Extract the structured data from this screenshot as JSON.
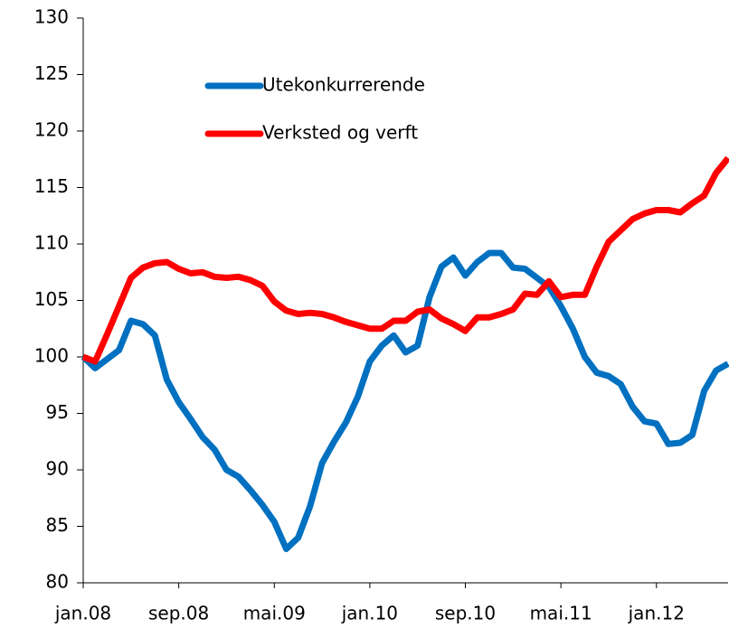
{
  "chart_data": {
    "type": "line",
    "categories": [
      "jan.08",
      null,
      null,
      null,
      null,
      null,
      null,
      null,
      "sep.08",
      null,
      null,
      null,
      null,
      null,
      null,
      null,
      "mai.09",
      null,
      null,
      null,
      null,
      null,
      null,
      null,
      "jan.10",
      null,
      null,
      null,
      null,
      null,
      null,
      null,
      "sep.10",
      null,
      null,
      null,
      null,
      null,
      null,
      null,
      "mai.11",
      null,
      null,
      null,
      null,
      null,
      null,
      null,
      "jan.12",
      null,
      null,
      null,
      null,
      null,
      null
    ],
    "series": [
      {
        "name": "Utekonkurrerende",
        "color": "#0070c0",
        "values": [
          100,
          99,
          99.8,
          100.6,
          103.2,
          102.9,
          101.9,
          98,
          96,
          94.5,
          92.9,
          91.8,
          90,
          89.4,
          88.2,
          86.9,
          85.4,
          83,
          84,
          86.8,
          90.6,
          92.5,
          94.2,
          96.5,
          99.6,
          101,
          101.9,
          100.4,
          101,
          105.3,
          108,
          108.8,
          107.2,
          108.4,
          109.2,
          109.2,
          107.9,
          107.8,
          107,
          106.2,
          104.5,
          102.5,
          100,
          98.6,
          98.3,
          97.6,
          95.6,
          94.3,
          94.1,
          92.3,
          92.4,
          93.1,
          97,
          98.8,
          99.4
        ]
      },
      {
        "name": "Verksted og verft",
        "color": "#ff0000",
        "values": [
          100,
          99.6,
          102,
          104.5,
          107,
          107.9,
          108.3,
          108.4,
          107.8,
          107.4,
          107.5,
          107.1,
          107,
          107.1,
          106.8,
          106.3,
          104.9,
          104.1,
          103.8,
          103.9,
          103.8,
          103.5,
          103.1,
          102.8,
          102.5,
          102.5,
          103.2,
          103.2,
          104,
          104.2,
          103.4,
          102.9,
          102.3,
          103.5,
          103.5,
          103.8,
          104.2,
          105.6,
          105.5,
          106.7,
          105.3,
          105.5,
          105.5,
          108,
          110.2,
          111.2,
          112.2,
          112.7,
          113,
          113,
          112.8,
          113.6,
          114.3,
          116.3,
          117.6
        ]
      }
    ],
    "ylim": [
      80,
      130
    ],
    "yticks": [
      80,
      85,
      90,
      95,
      100,
      105,
      110,
      115,
      120,
      125,
      130
    ],
    "grid": false,
    "legend": "upper center"
  }
}
